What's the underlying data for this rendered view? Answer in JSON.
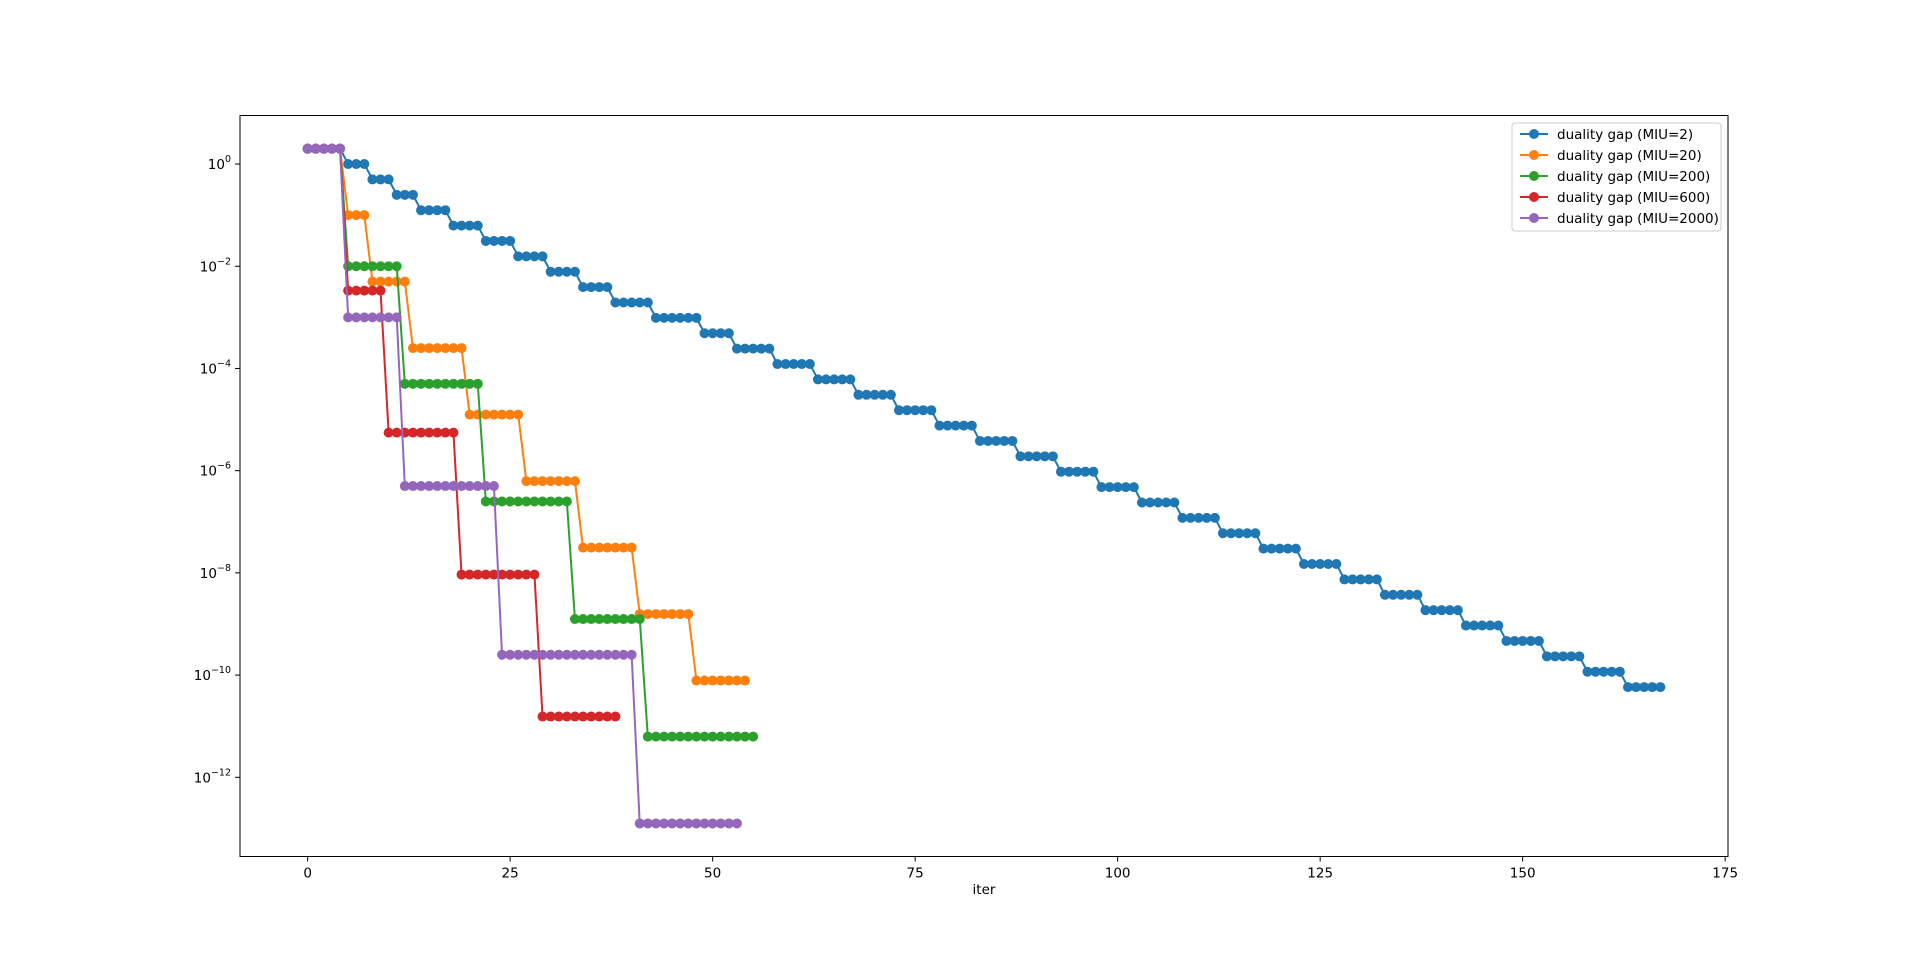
{
  "chart_data": {
    "type": "line",
    "title": "",
    "xlabel": "iter",
    "ylabel": "",
    "yscale": "log",
    "xlim": [
      -8.35,
      175.35
    ],
    "ylim_log10": [
      -13.55,
      0.95
    ],
    "x_ticks": [
      0,
      25,
      50,
      75,
      100,
      125,
      150,
      175
    ],
    "y_tick_exponents": [
      0,
      -2,
      -4,
      -6,
      -8,
      -10,
      -12
    ],
    "y_tick_labels": [
      {
        "base": "10",
        "exp": "0"
      },
      {
        "base": "10",
        "exp": "−2"
      },
      {
        "base": "10",
        "exp": "−4"
      },
      {
        "base": "10",
        "exp": "−6"
      },
      {
        "base": "10",
        "exp": "−8"
      },
      {
        "base": "10",
        "exp": "−10"
      },
      {
        "base": "10",
        "exp": "−12"
      }
    ],
    "grid": false,
    "legend_position": "top-right",
    "marker": "circle",
    "series": [
      {
        "name": "duality gap (MIU=2)",
        "color": "#1f77b4",
        "note": "piecewise-constant log10(gap) levels; each level holds for 'len' iterations",
        "levels": [
          {
            "log10": 0.301,
            "len": 5
          },
          {
            "log10": 0.0,
            "len": 3
          },
          {
            "log10": -0.301,
            "len": 3
          },
          {
            "log10": -0.6021,
            "len": 3
          },
          {
            "log10": -0.9031,
            "len": 4
          },
          {
            "log10": -1.2041,
            "len": 4
          },
          {
            "log10": -1.5051,
            "len": 4
          },
          {
            "log10": -1.8062,
            "len": 4
          },
          {
            "log10": -2.1072,
            "len": 4
          },
          {
            "log10": -2.4082,
            "len": 4
          },
          {
            "log10": -2.7093,
            "len": 5
          },
          {
            "log10": -3.0103,
            "len": 6
          },
          {
            "log10": -3.3113,
            "len": 4
          },
          {
            "log10": -3.6124,
            "len": 5
          },
          {
            "log10": -3.9134,
            "len": 5
          },
          {
            "log10": -4.2144,
            "len": 5
          },
          {
            "log10": -4.5154,
            "len": 5
          },
          {
            "log10": -4.8165,
            "len": 5
          },
          {
            "log10": -5.1175,
            "len": 5
          },
          {
            "log10": -5.4185,
            "len": 5
          },
          {
            "log10": -5.7196,
            "len": 5
          },
          {
            "log10": -6.0206,
            "len": 5
          },
          {
            "log10": -6.3216,
            "len": 5
          },
          {
            "log10": -6.6227,
            "len": 5
          },
          {
            "log10": -6.9237,
            "len": 5
          },
          {
            "log10": -7.2247,
            "len": 5
          },
          {
            "log10": -7.5257,
            "len": 5
          },
          {
            "log10": -7.8268,
            "len": 5
          },
          {
            "log10": -8.1278,
            "len": 5
          },
          {
            "log10": -8.4288,
            "len": 5
          },
          {
            "log10": -8.7299,
            "len": 5
          },
          {
            "log10": -9.0309,
            "len": 5
          },
          {
            "log10": -9.3319,
            "len": 5
          },
          {
            "log10": -9.633,
            "len": 5
          },
          {
            "log10": -9.934,
            "len": 5
          },
          {
            "log10": -10.235,
            "len": 5
          }
        ]
      },
      {
        "name": "duality gap (MIU=20)",
        "color": "#ff7f0e",
        "levels": [
          {
            "log10": 0.301,
            "len": 5
          },
          {
            "log10": -1.0,
            "len": 3
          },
          {
            "log10": -2.301,
            "len": 5
          },
          {
            "log10": -3.6021,
            "len": 7
          },
          {
            "log10": -4.9031,
            "len": 7
          },
          {
            "log10": -6.2041,
            "len": 7
          },
          {
            "log10": -7.5051,
            "len": 7
          },
          {
            "log10": -8.8062,
            "len": 7
          },
          {
            "log10": -10.1072,
            "len": 7
          }
        ]
      },
      {
        "name": "duality gap (MIU=200)",
        "color": "#2ca02c",
        "levels": [
          {
            "log10": 0.301,
            "len": 5
          },
          {
            "log10": -2.0,
            "len": 7
          },
          {
            "log10": -4.301,
            "len": 10
          },
          {
            "log10": -6.6021,
            "len": 11
          },
          {
            "log10": -8.9031,
            "len": 9
          },
          {
            "log10": -11.2041,
            "len": 14
          }
        ]
      },
      {
        "name": "duality gap (MIU=600)",
        "color": "#d62728",
        "levels": [
          {
            "log10": 0.301,
            "len": 5
          },
          {
            "log10": -2.4771,
            "len": 5
          },
          {
            "log10": -5.2553,
            "len": 9
          },
          {
            "log10": -8.0334,
            "len": 10
          },
          {
            "log10": -10.8116,
            "len": 10
          }
        ]
      },
      {
        "name": "duality gap (MIU=2000)",
        "color": "#9467bd",
        "levels": [
          {
            "log10": 0.301,
            "len": 5
          },
          {
            "log10": -3.0,
            "len": 7
          },
          {
            "log10": -6.301,
            "len": 12
          },
          {
            "log10": -9.6021,
            "len": 17
          },
          {
            "log10": -12.9031,
            "len": 13
          }
        ]
      }
    ]
  }
}
